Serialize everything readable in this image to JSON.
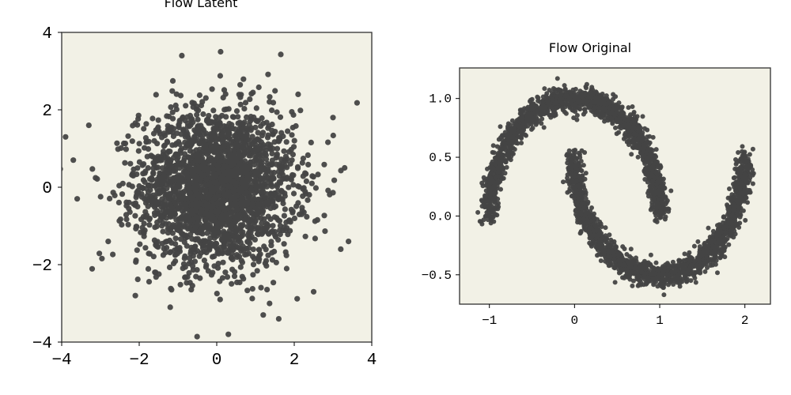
{
  "chart_data": [
    {
      "type": "scatter",
      "title": "Flow Latent",
      "xlabel": "",
      "ylabel": "",
      "xlim": [
        -4,
        4
      ],
      "ylim": [
        -4,
        4
      ],
      "xticks": [
        "−4",
        "−2",
        "0",
        "2",
        "4"
      ],
      "yticks": [
        "4",
        "2",
        "0",
        "−2",
        "−4"
      ],
      "grid": false,
      "distribution": "standard normal (2D), mean [0, 0], std 1",
      "point_color": "#444444",
      "background_color": "#f2f1e6",
      "sample_points": [
        [
          -3.9,
          1.3
        ],
        [
          -3.7,
          0.7
        ],
        [
          -3.6,
          -0.3
        ],
        [
          3.3,
          0.5
        ],
        [
          3.4,
          -1.4
        ],
        [
          3.2,
          -1.6
        ],
        [
          0.1,
          3.5
        ],
        [
          -0.9,
          3.4
        ],
        [
          0.3,
          -3.8
        ],
        [
          1.6,
          -3.4
        ],
        [
          2.5,
          -2.7
        ],
        [
          -2.1,
          -2.8
        ],
        [
          -3.3,
          1.6
        ],
        [
          2.1,
          2.4
        ],
        [
          -1.2,
          -3.1
        ],
        [
          1.2,
          -3.3
        ],
        [
          3.0,
          1.8
        ],
        [
          -2.8,
          -1.4
        ]
      ]
    },
    {
      "type": "scatter",
      "title": "Flow Original",
      "xlabel": "",
      "ylabel": "",
      "xlim": [
        -1.35,
        2.3
      ],
      "ylim": [
        -0.75,
        1.26
      ],
      "xticks": [
        "−1",
        "0",
        "1",
        "2"
      ],
      "yticks": [
        "1.0",
        "0.5",
        "0.0",
        "−0.5"
      ],
      "grid": false,
      "distribution": "two interleaving half-moons with noise",
      "point_color": "#444444",
      "background_color": "#f2f1e6",
      "sample_points": [
        [
          -1.0,
          0.0
        ],
        [
          0.0,
          1.0
        ],
        [
          1.0,
          0.0
        ],
        [
          0.0,
          0.5
        ],
        [
          1.0,
          -0.5
        ],
        [
          2.0,
          0.5
        ],
        [
          -0.7,
          0.7
        ],
        [
          0.7,
          0.7
        ],
        [
          0.3,
          -0.2
        ],
        [
          1.7,
          -0.2
        ],
        [
          -0.2,
          1.17
        ],
        [
          1.05,
          -0.67
        ]
      ]
    }
  ]
}
